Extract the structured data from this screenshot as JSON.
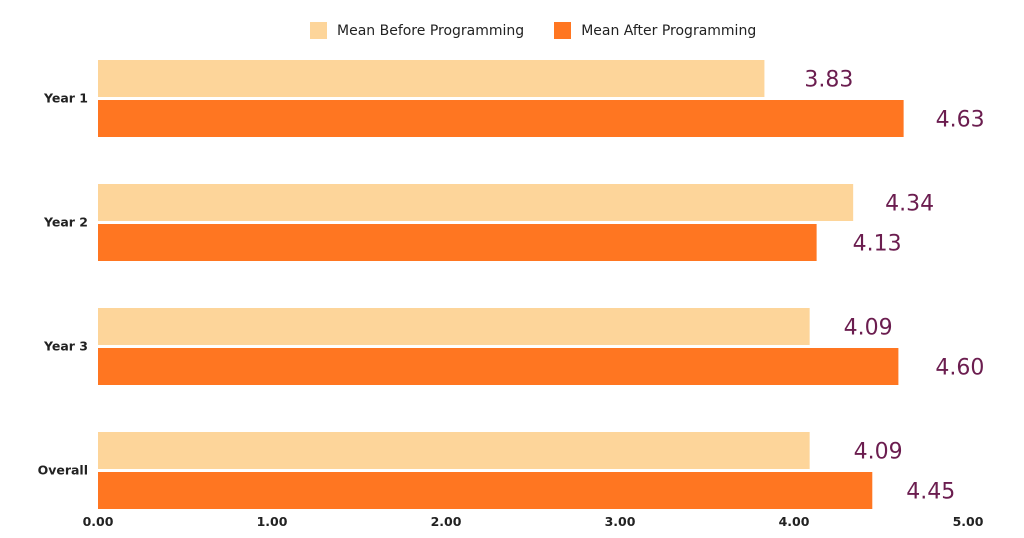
{
  "chart_data": {
    "type": "bar",
    "orientation": "horizontal",
    "categories": [
      "Year 1",
      "Year 2",
      "Year 3",
      "Overall"
    ],
    "series": [
      {
        "name": "Mean Before Programming",
        "values": [
          3.83,
          4.34,
          4.09,
          4.09
        ],
        "color": "#FDD59A"
      },
      {
        "name": "Mean After Programming",
        "values": [
          4.63,
          4.13,
          4.6,
          4.45
        ],
        "color": "#FF7621"
      }
    ],
    "data_labels": [
      [
        "3.83",
        "4.34",
        "4.09",
        "4.09"
      ],
      [
        "4.63",
        "4.13",
        "4.60",
        "4.45"
      ]
    ],
    "x_ticks": [
      "0.00",
      "1.00",
      "2.00",
      "3.00",
      "4.00",
      "5.00"
    ],
    "xlim": [
      0,
      5
    ],
    "grid": false,
    "legend_position": "top-center"
  }
}
